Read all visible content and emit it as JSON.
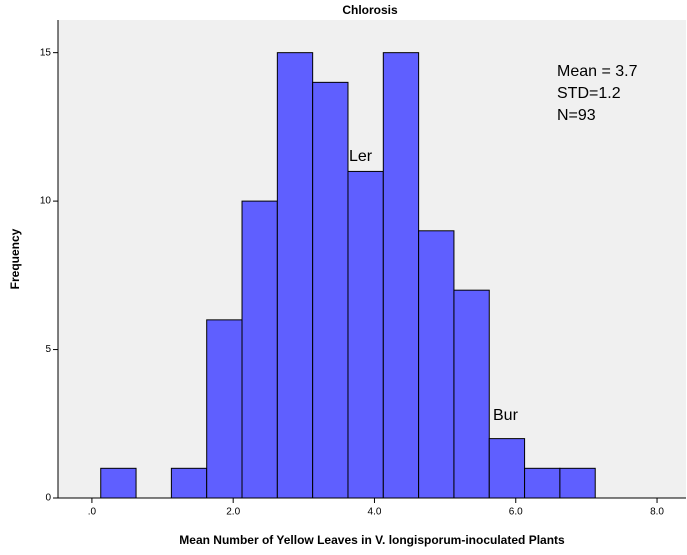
{
  "chart_data": {
    "type": "histogram",
    "title": "Chlorosis",
    "x_label": "Mean Number of Yellow Leaves in V. longisporum-inoculated Plants",
    "y_label": "Frequency",
    "bins": [
      0.125,
      0.625,
      1.125,
      1.625,
      2.125,
      2.625,
      3.125,
      3.625,
      4.125,
      4.625,
      5.125,
      5.625,
      6.125,
      6.625,
      7.125
    ],
    "values": [
      1,
      0,
      1,
      6,
      10,
      15,
      14,
      11,
      15,
      9,
      7,
      2,
      1,
      1
    ],
    "color": "#5f5fff",
    "xlim": [
      -0.48,
      8.41
    ],
    "xticks": [
      {
        "value": 0,
        "label": ".0"
      },
      {
        "value": 2,
        "label": "2.0"
      },
      {
        "value": 4,
        "label": "4.0"
      },
      {
        "value": 6,
        "label": "6.0"
      },
      {
        "value": 8,
        "label": "8.0"
      }
    ],
    "ylim": [
      0,
      16.1
    ],
    "yticks": [
      0,
      5,
      10,
      15
    ],
    "annotations": [
      "Mean = 3.7",
      "STD=1.2",
      "N=93",
      "Ler",
      "Bur"
    ]
  }
}
